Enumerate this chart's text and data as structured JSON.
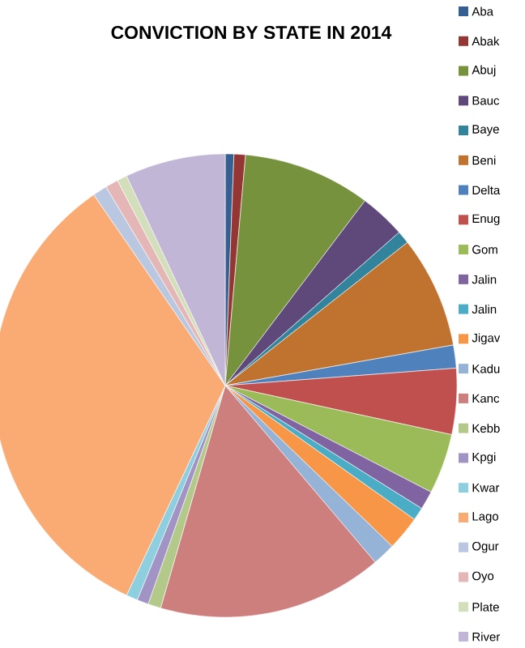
{
  "chart_data": {
    "type": "pie",
    "title": "CONVICTION BY  STATE IN 2014",
    "categories": [
      "Aba",
      "Abak",
      "Abuj",
      "Bauc",
      "Baye",
      "Beni",
      "Delta",
      "Enug",
      "Gom",
      "Jalin",
      "Jalin",
      "Jigav",
      "Kadu",
      "Kanc",
      "Kebb",
      "Kpgi",
      "Kwar",
      "Lago",
      "Ogur",
      "Oyo",
      "Plate",
      "River"
    ],
    "values": [
      0.6,
      0.8,
      8.9,
      3.2,
      0.9,
      7.8,
      1.6,
      4.6,
      4.2,
      1.3,
      0.9,
      2.4,
      1.6,
      15.7,
      0.9,
      0.8,
      0.8,
      33.4,
      1.0,
      0.9,
      0.7,
      7.0
    ],
    "colors": [
      "#365f91",
      "#943634",
      "#76923c",
      "#5f497a",
      "#31849b",
      "#c0722f",
      "#4f81bd",
      "#c0504d",
      "#9bbb59",
      "#8064a2",
      "#4bacc6",
      "#f79646",
      "#95b3d7",
      "#cd7f7e",
      "#b3c98a",
      "#a193c4",
      "#8ecfdf",
      "#f9ab73",
      "#b9c7e0",
      "#e4b6b6",
      "#d2dfba",
      "#c1b6d6"
    ],
    "legend": "right"
  }
}
